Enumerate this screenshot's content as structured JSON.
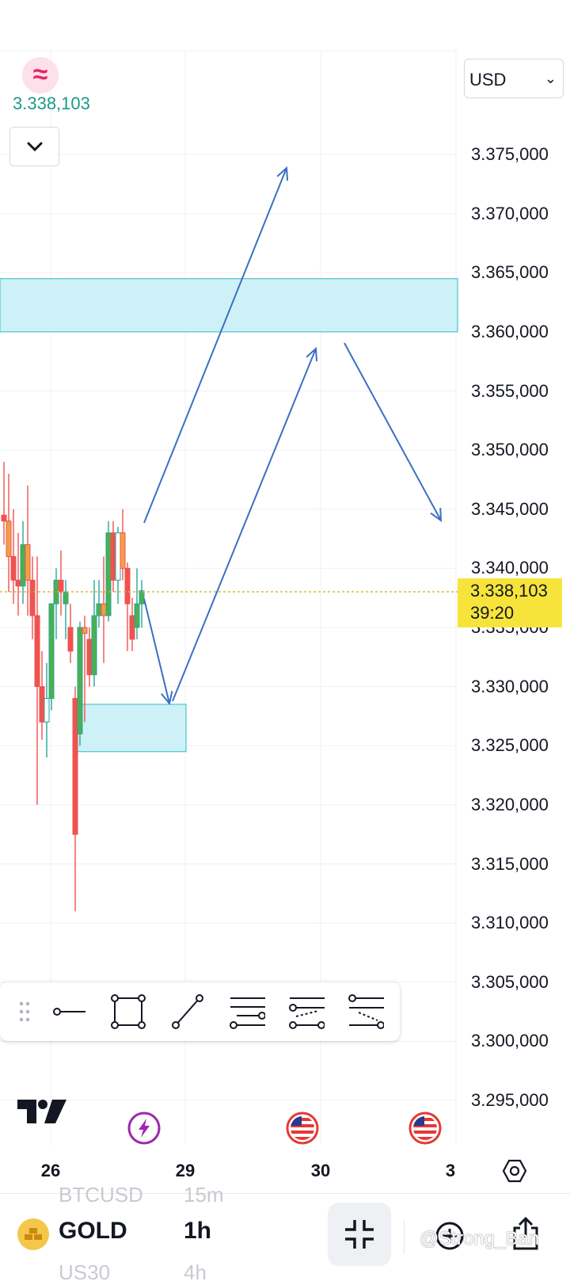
{
  "header": {
    "symbol_logo_glyph": "≈",
    "current_price": "3.338,103",
    "collapse_icon": "chevron-down-icon",
    "currency": "USD"
  },
  "price_axis": {
    "labels": [
      "3.375,000",
      "3.370,000",
      "3.365,000",
      "3.360,000",
      "3.355,000",
      "3.350,000",
      "3.345,000",
      "3.340,000",
      "3.335,000",
      "3.330,000",
      "3.325,000",
      "3.320,000",
      "3.315,000",
      "3.310,000",
      "3.305,000",
      "3.300,000",
      "3.295,000"
    ],
    "last_price": "3.338,103",
    "countdown": "39:20"
  },
  "time_axis": {
    "labels": [
      "26",
      "29",
      "30",
      "3"
    ]
  },
  "chart_data": {
    "type": "candlestick",
    "y_range": [
      3292000,
      3380000
    ],
    "candles": [
      {
        "o": 3344500,
        "h": 3349000,
        "l": 3342000,
        "c": 3344000
      },
      {
        "o": 3344000,
        "h": 3348000,
        "l": 3338000,
        "c": 3341000
      },
      {
        "o": 3341000,
        "h": 3345000,
        "l": 3337000,
        "c": 3339000
      },
      {
        "o": 3339000,
        "h": 3343000,
        "l": 3336000,
        "c": 3338500
      },
      {
        "o": 3338500,
        "h": 3344000,
        "l": 3337000,
        "c": 3342000
      },
      {
        "o": 3342000,
        "h": 3347000,
        "l": 3336000,
        "c": 3339000
      },
      {
        "o": 3339000,
        "h": 3341000,
        "l": 3334000,
        "c": 3336000
      },
      {
        "o": 3336000,
        "h": 3341000,
        "l": 3320000,
        "c": 3330000
      },
      {
        "o": 3330000,
        "h": 3333000,
        "l": 3325500,
        "c": 3327000
      },
      {
        "o": 3327000,
        "h": 3332000,
        "l": 3324000,
        "c": 3329000
      },
      {
        "o": 3329000,
        "h": 3337000,
        "l": 3328000,
        "c": 3337000
      },
      {
        "o": 3337000,
        "h": 3340000,
        "l": 3334000,
        "c": 3339000
      },
      {
        "o": 3339000,
        "h": 3341500,
        "l": 3336000,
        "c": 3338000
      },
      {
        "o": 3337000,
        "h": 3339000,
        "l": 3334000,
        "c": 3338000
      },
      {
        "o": 3335000,
        "h": 3337000,
        "l": 3332000,
        "c": 3333000
      },
      {
        "o": 3329000,
        "h": 3330000,
        "l": 3311000,
        "c": 3317500
      },
      {
        "o": 3326000,
        "h": 3335500,
        "l": 3325000,
        "c": 3335000
      },
      {
        "o": 3335000,
        "h": 3336000,
        "l": 3327000,
        "c": 3334500
      },
      {
        "o": 3334000,
        "h": 3335000,
        "l": 3330000,
        "c": 3331000
      },
      {
        "o": 3331000,
        "h": 3339000,
        "l": 3330000,
        "c": 3336000
      },
      {
        "o": 3336000,
        "h": 3339000,
        "l": 3335000,
        "c": 3337000
      },
      {
        "o": 3337000,
        "h": 3341000,
        "l": 3332000,
        "c": 3336000
      },
      {
        "o": 3336000,
        "h": 3344000,
        "l": 3335500,
        "c": 3343000
      },
      {
        "o": 3343000,
        "h": 3344000,
        "l": 3338000,
        "c": 3339000
      },
      {
        "o": 3339000,
        "h": 3343500,
        "l": 3337000,
        "c": 3343000
      },
      {
        "o": 3343000,
        "h": 3345000,
        "l": 3339000,
        "c": 3340000
      },
      {
        "o": 3340000,
        "h": 3340500,
        "l": 3333000,
        "c": 3337000
      },
      {
        "o": 3336000,
        "h": 3337500,
        "l": 3333000,
        "c": 3334000
      },
      {
        "o": 3335000,
        "h": 3340000,
        "l": 3334000,
        "c": 3337000
      },
      {
        "o": 3337000,
        "h": 3339000,
        "l": 3335000,
        "c": 3338100
      }
    ],
    "zones": [
      {
        "from": 3360000,
        "to": 3364500
      },
      {
        "from": 3324500,
        "to": 3328500
      }
    ]
  },
  "colors": {
    "up": "#26a69a",
    "up_body": "#4caf50",
    "down": "#ef5350",
    "orange_body": "#f0a046",
    "zone_fill": "#cdf1f6",
    "zone_stroke": "#4fc3d2",
    "arrow": "#3b6fc4",
    "last_price": "#f7e43a"
  },
  "drawing_toolbar": {
    "tools": [
      "drag-handle-icon",
      "horizontal-ray-icon",
      "rectangle-icon",
      "trend-line-icon",
      "parallel-channel-icon",
      "fib-retracement-icon",
      "fib-extension-icon"
    ]
  },
  "event_markers": [
    "lightning-icon",
    "us-flag-icon",
    "us-flag-icon"
  ],
  "bottom_bar": {
    "ghost_symbol_above": "BTCUSD",
    "ghost_interval_above": "15m",
    "symbol": "GOLD",
    "interval": "1h",
    "ghost_symbol_below": "US30",
    "ghost_interval_below": "4h",
    "watermark": "@Strong_Ban"
  }
}
